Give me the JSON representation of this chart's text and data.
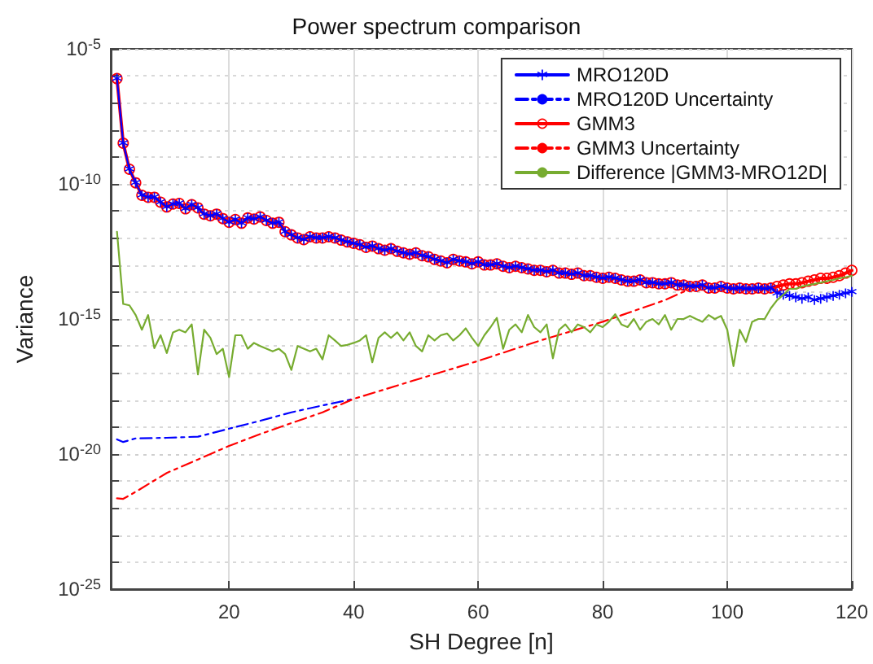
{
  "chart_data": {
    "type": "line",
    "title": "Power spectrum comparison",
    "xlabel": "SH Degree [n]",
    "ylabel": "Variance",
    "x": [
      2,
      3,
      4,
      5,
      6,
      7,
      8,
      9,
      10,
      11,
      12,
      13,
      14,
      15,
      16,
      17,
      18,
      19,
      20,
      21,
      22,
      23,
      24,
      25,
      26,
      27,
      28,
      29,
      30,
      31,
      32,
      33,
      34,
      35,
      36,
      37,
      38,
      39,
      40,
      41,
      42,
      43,
      44,
      45,
      46,
      47,
      48,
      49,
      50,
      51,
      52,
      53,
      54,
      55,
      56,
      57,
      58,
      59,
      60,
      61,
      62,
      63,
      64,
      65,
      66,
      67,
      68,
      69,
      70,
      71,
      72,
      73,
      74,
      75,
      76,
      77,
      78,
      79,
      80,
      81,
      82,
      83,
      84,
      85,
      86,
      87,
      88,
      89,
      90,
      91,
      92,
      93,
      94,
      95,
      96,
      97,
      98,
      99,
      100,
      101,
      102,
      103,
      104,
      105,
      106,
      107,
      108,
      109,
      110,
      111,
      112,
      113,
      114,
      115,
      116,
      117,
      118,
      119,
      120
    ],
    "series": [
      {
        "name": "MRO120D",
        "color": "#0000ff",
        "marker": "cross",
        "line_style": "solid",
        "values": [
          7.9e-07,
          3.2e-09,
          3.5e-10,
          1.1e-10,
          3.8e-11,
          3.2e-11,
          3.2e-11,
          2.1e-11,
          1.4e-11,
          1.8e-11,
          1.9e-11,
          1.2e-11,
          1.7e-11,
          1.3e-11,
          7.6e-12,
          6.6e-12,
          7.6e-12,
          5.2e-12,
          3.8e-12,
          4.8e-12,
          3.5e-12,
          5.5e-12,
          5e-12,
          6e-12,
          4.4e-12,
          3.5e-12,
          3.8e-12,
          1.7e-12,
          1.3e-12,
          1e-12,
          8.7e-13,
          1.1e-12,
          1e-12,
          1e-12,
          1.1e-12,
          1e-12,
          8.3e-13,
          7.1e-13,
          6.3e-13,
          5.6e-13,
          4.5e-13,
          5e-13,
          4e-13,
          3.5e-13,
          4e-13,
          3.2e-13,
          2.8e-13,
          2.5e-13,
          2.8e-13,
          2.2e-13,
          2e-13,
          1.6e-13,
          1.4e-13,
          1.2e-13,
          1.6e-13,
          1.4e-13,
          1.3e-13,
          1.1e-13,
          1.3e-13,
          1e-13,
          1e-13,
          1.1e-13,
          8.9e-14,
          7.9e-14,
          8.9e-14,
          7.9e-14,
          7.1e-14,
          6.3e-14,
          6.3e-14,
          5.6e-14,
          6.3e-14,
          5e-14,
          5e-14,
          4.5e-14,
          5e-14,
          4e-14,
          4e-14,
          3.5e-14,
          3.2e-14,
          3.5e-14,
          3.2e-14,
          2.8e-14,
          2.5e-14,
          2.5e-14,
          2.8e-14,
          2.2e-14,
          2.2e-14,
          2e-14,
          2e-14,
          2.2e-14,
          1.8e-14,
          1.8e-14,
          1.6e-14,
          1.6e-14,
          1.8e-14,
          1.4e-14,
          1.4e-14,
          1.6e-14,
          1.4e-14,
          1.3e-14,
          1.4e-14,
          1.3e-14,
          1.3e-14,
          1.4e-14,
          1.3e-14,
          1.4e-14,
          8.9e-15,
          7.9e-15,
          7.1e-15,
          6.3e-15,
          5.6e-15,
          6.3e-15,
          5e-15,
          5.6e-15,
          6.3e-15,
          7.1e-15,
          7.9e-15,
          8.9e-15,
          1e-14
        ]
      },
      {
        "name": "MRO120D Uncertainty",
        "color": "#0000ff",
        "marker": "none",
        "line_style": "dashed",
        "x": [
          2,
          3,
          5,
          10,
          15,
          20,
          25,
          30,
          35,
          40
        ],
        "values": [
          3.5e-20,
          2.8e-20,
          3.8e-20,
          4e-20,
          4.4e-20,
          8.7e-20,
          1.7e-19,
          3.5e-19,
          6.3e-19,
          1.1e-18
        ]
      },
      {
        "name": "GMM3",
        "color": "#ff0000",
        "marker": "circle",
        "line_style": "solid",
        "values": [
          7.9e-07,
          3.2e-09,
          3.5e-10,
          1.1e-10,
          3.8e-11,
          3.2e-11,
          3.2e-11,
          2.1e-11,
          1.4e-11,
          1.8e-11,
          1.9e-11,
          1.2e-11,
          1.7e-11,
          1.3e-11,
          7.6e-12,
          6.6e-12,
          7.6e-12,
          5.2e-12,
          3.8e-12,
          4.8e-12,
          3.5e-12,
          5.5e-12,
          5e-12,
          6e-12,
          4.4e-12,
          3.5e-12,
          3.8e-12,
          1.7e-12,
          1.3e-12,
          1e-12,
          8.7e-13,
          1.1e-12,
          1e-12,
          1e-12,
          1.1e-12,
          1e-12,
          8.3e-13,
          7.1e-13,
          6.3e-13,
          5.6e-13,
          4.5e-13,
          5e-13,
          4e-13,
          3.5e-13,
          4e-13,
          3.2e-13,
          2.8e-13,
          2.5e-13,
          2.8e-13,
          2.2e-13,
          2e-13,
          1.6e-13,
          1.4e-13,
          1.2e-13,
          1.6e-13,
          1.4e-13,
          1.3e-13,
          1.1e-13,
          1.3e-13,
          1e-13,
          1e-13,
          1.1e-13,
          8.9e-14,
          7.9e-14,
          8.9e-14,
          7.9e-14,
          7.1e-14,
          6.3e-14,
          6.3e-14,
          5.6e-14,
          6.3e-14,
          5e-14,
          5e-14,
          4.5e-14,
          5e-14,
          4e-14,
          4e-14,
          3.5e-14,
          3.2e-14,
          3.5e-14,
          3.2e-14,
          2.8e-14,
          2.5e-14,
          2.5e-14,
          2.8e-14,
          2.2e-14,
          2.2e-14,
          2e-14,
          2e-14,
          2.2e-14,
          1.8e-14,
          1.8e-14,
          1.6e-14,
          1.6e-14,
          1.8e-14,
          1.4e-14,
          1.4e-14,
          1.6e-14,
          1.4e-14,
          1.3e-14,
          1.4e-14,
          1.3e-14,
          1.3e-14,
          1.4e-14,
          1.3e-14,
          1.4e-14,
          1.6e-14,
          1.8e-14,
          2e-14,
          2e-14,
          2.2e-14,
          2.5e-14,
          2.8e-14,
          3.2e-14,
          3.2e-14,
          3.5e-14,
          4e-14,
          5e-14,
          6.3e-14
        ]
      },
      {
        "name": "GMM3 Uncertainty",
        "color": "#ff0000",
        "marker": "none",
        "line_style": "dashed",
        "x": [
          2,
          3,
          5,
          10,
          15,
          20,
          25,
          30,
          35,
          40,
          50,
          60,
          70,
          80,
          90,
          94
        ],
        "values": [
          2.3e-22,
          2.2e-22,
          4e-22,
          2e-21,
          6.3e-21,
          2e-20,
          5.5e-20,
          1.4e-19,
          3.5e-19,
          1.1e-18,
          5.6e-18,
          2.8e-17,
          1.6e-16,
          7.9e-16,
          5e-15,
          1.3e-14
        ]
      },
      {
        "name": "Difference |GMM3-MRO12D|",
        "color": "#77ac30",
        "marker": "none",
        "line_style": "solid",
        "values": [
          1.7e-12,
          3.6e-15,
          3.2e-15,
          1.4e-15,
          4e-16,
          1.4e-15,
          8.3e-17,
          2.5e-16,
          5.5e-17,
          3.2e-16,
          4e-16,
          3.2e-16,
          6.3e-16,
          8.9e-18,
          4e-16,
          2e-16,
          5e-17,
          7.9e-17,
          7.1e-18,
          2.5e-16,
          2.5e-16,
          7.9e-17,
          1.3e-16,
          1e-16,
          7.9e-17,
          6.3e-17,
          7.9e-17,
          5e-17,
          1.3e-17,
          1e-16,
          7.9e-17,
          6.3e-17,
          7.9e-17,
          3.2e-17,
          2.5e-16,
          1.6e-16,
          1e-16,
          1.1e-16,
          1.3e-16,
          1.6e-16,
          2.5e-16,
          2.5e-17,
          2e-16,
          3.2e-16,
          2e-16,
          3.2e-16,
          1.6e-16,
          3.2e-16,
          1e-16,
          6.3e-17,
          2.5e-16,
          1.6e-16,
          2.5e-16,
          2.9e-16,
          1.6e-16,
          2.5e-16,
          4.5e-16,
          2e-16,
          1e-16,
          2.5e-16,
          5e-16,
          1.1e-15,
          7.9e-17,
          4e-16,
          6.3e-16,
          3.2e-16,
          1.4e-15,
          5e-16,
          3.2e-16,
          6.3e-16,
          3.5e-17,
          4e-16,
          6.3e-16,
          3.2e-16,
          6.3e-16,
          5e-16,
          3.2e-16,
          6.3e-16,
          5e-16,
          7.9e-16,
          1.5e-15,
          6.3e-16,
          5e-16,
          1e-15,
          4e-16,
          7.9e-16,
          1e-15,
          6.3e-16,
          1.4e-15,
          4e-16,
          1e-15,
          1e-15,
          1.3e-15,
          1e-15,
          7.9e-16,
          1.4e-15,
          1e-15,
          1.3e-15,
          4e-16,
          1.8e-17,
          4e-16,
          1.4e-16,
          7.9e-16,
          1e-15,
          1e-15,
          2.5e-15,
          5e-15,
          7.9e-15,
          1.3e-14,
          1.3e-14,
          1.6e-14,
          1.8e-14,
          2e-14,
          2.2e-14,
          2.5e-14,
          2.8e-14,
          3.2e-14,
          3.5e-14,
          4e-14
        ]
      }
    ],
    "xlim": [
      1,
      120
    ],
    "xticks": [
      20,
      40,
      60,
      80,
      100,
      120
    ],
    "ylim": [
      1e-25,
      1e-05
    ],
    "yticks": [
      {
        "value": 1e-25,
        "label": "10$^{-25}$"
      },
      {
        "value": 1e-24,
        "label": null
      },
      {
        "value": 1e-23,
        "label": null
      },
      {
        "value": 1e-22,
        "label": null
      },
      {
        "value": 1e-21,
        "label": null
      },
      {
        "value": 1e-20,
        "label": "10$^{-20}$"
      },
      {
        "value": 1e-19,
        "label": null
      },
      {
        "value": 1e-18,
        "label": null
      },
      {
        "value": 1e-17,
        "label": null
      },
      {
        "value": 1e-16,
        "label": null
      },
      {
        "value": 1e-15,
        "label": "10$^{-15}$"
      },
      {
        "value": 1e-14,
        "label": null
      },
      {
        "value": 1e-13,
        "label": null
      },
      {
        "value": 1e-12,
        "label": null
      },
      {
        "value": 1e-11,
        "label": null
      },
      {
        "value": 1e-10,
        "label": "10$^{-10}$"
      },
      {
        "value": 1e-09,
        "label": null
      },
      {
        "value": 1e-08,
        "label": null
      },
      {
        "value": 1e-07,
        "label": null
      },
      {
        "value": 1e-06,
        "label": null
      },
      {
        "value": 1e-05,
        "label": "10$^{-5}$"
      }
    ],
    "log": "y",
    "grid": true,
    "legend": "top right"
  }
}
